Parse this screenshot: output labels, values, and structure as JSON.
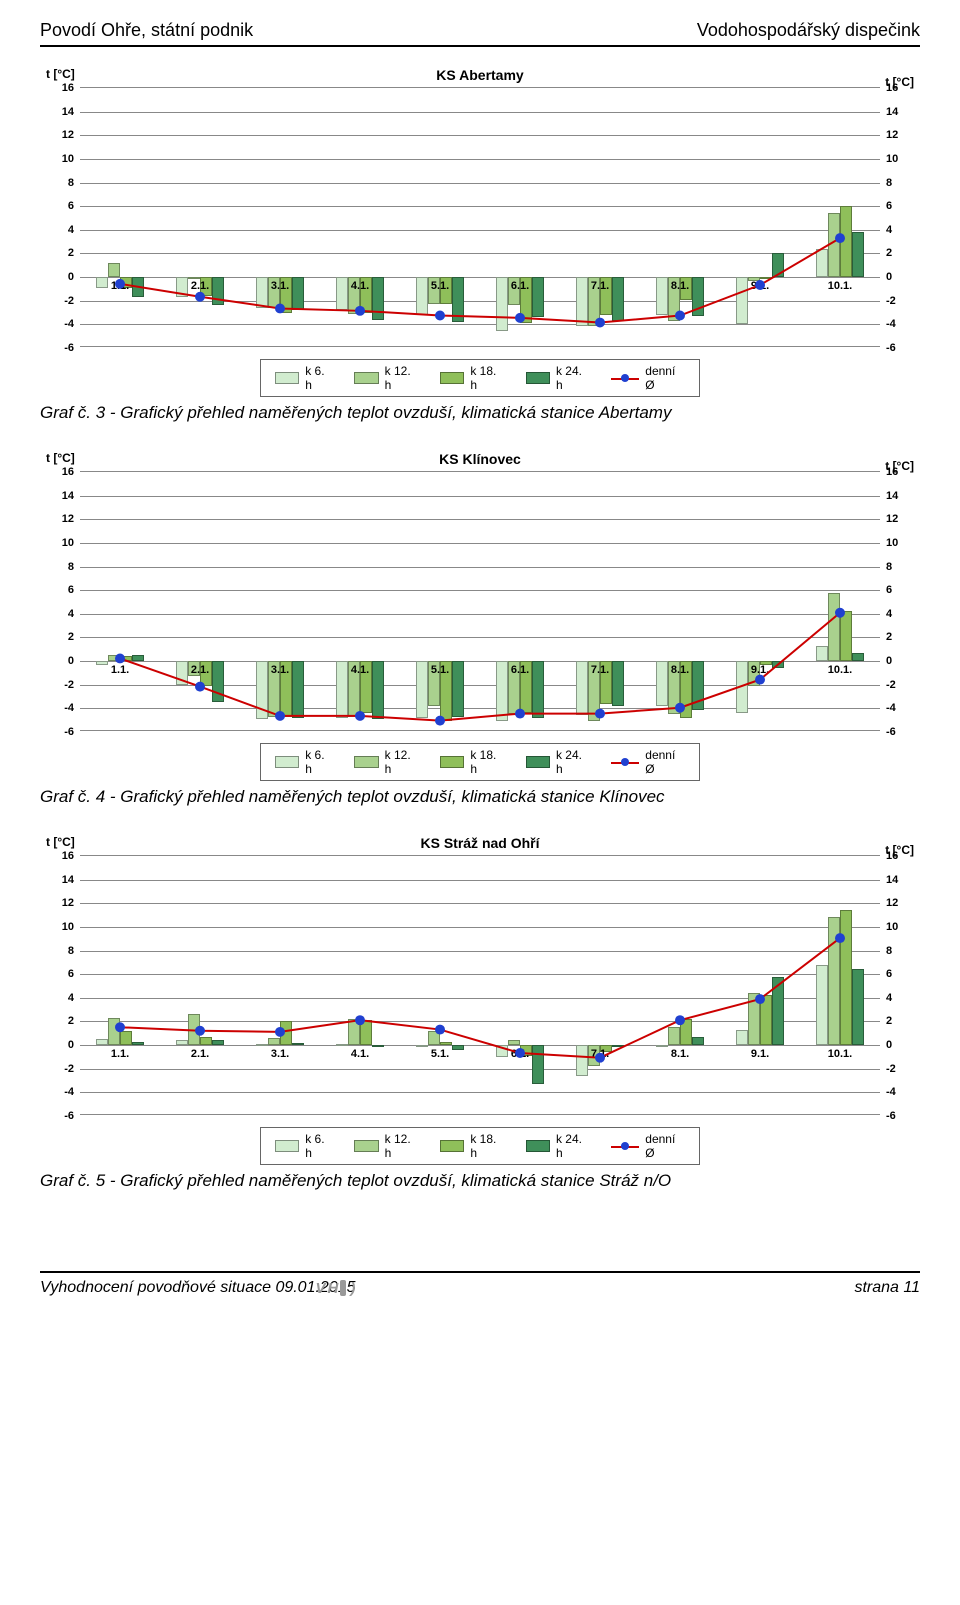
{
  "header": {
    "left": "Povodí Ohře, státní podnik",
    "right": "Vodohospodářský dispečink"
  },
  "footer": {
    "left": "Vyhodnocení povodňové situace 09.01.2015",
    "right": "strana 11"
  },
  "legend": {
    "items": [
      {
        "label": "k 6. h",
        "color": "#d1eccf"
      },
      {
        "label": "k 12. h",
        "color": "#a9d18e"
      },
      {
        "label": "k 18. h",
        "color": "#8fbf5a"
      },
      {
        "label": "k 24. h",
        "color": "#3f8f5a"
      },
      {
        "label": "denní Ø",
        "type": "line",
        "line_color": "#cc0000",
        "marker_color": "#2040d0"
      }
    ]
  },
  "chart_style": {
    "ylim": [
      -6,
      16
    ],
    "ytick_step": 2,
    "grid_color": "#888888",
    "background": "#ffffff",
    "bar_group_width": 0.6,
    "bar_colors": [
      "#d1eccf",
      "#a9d18e",
      "#8fbf5a",
      "#3f8f5a"
    ],
    "line_color": "#cc0000",
    "line_width": 2,
    "marker_color": "#2040d0",
    "marker_radius": 5,
    "title_fontsize": 14,
    "tick_fontsize": 11,
    "axis_label": "t [°C]"
  },
  "charts": [
    {
      "name": "abertamy",
      "title": "KS Abertamy",
      "caption": "Graf č. 3 - Grafický přehled naměřených teplot ovzduší, klimatická stanice Abertamy",
      "categories": [
        "1.1.",
        "2.1.",
        "3.1.",
        "4.1.",
        "5.1.",
        "6.1.",
        "7.1.",
        "8.1.",
        "9.1.",
        "10.1."
      ],
      "series": [
        [
          -0.9,
          -1.7,
          -2.6,
          -2.8,
          -3.2,
          -4.6,
          -4.1,
          -3.2,
          -4.0,
          2.4
        ],
        [
          1.2,
          0.0,
          -2.6,
          -3.1,
          -2.3,
          -2.4,
          -4.1,
          -3.7,
          -0.3,
          5.4
        ],
        [
          -0.9,
          -1.6,
          -3.0,
          -3.0,
          -2.3,
          -3.9,
          -3.2,
          -1.9,
          0.0,
          6.0
        ],
        [
          -1.7,
          -2.4,
          -2.8,
          -3.6,
          -3.8,
          -3.4,
          -3.7,
          -3.3,
          2.0,
          3.8
        ]
      ],
      "line": [
        -0.7,
        -1.8,
        -2.8,
        -3.0,
        -3.4,
        -3.6,
        -4.0,
        -3.4,
        -0.8,
        3.2
      ]
    },
    {
      "name": "klinovec",
      "title": "KS Klínovec",
      "caption": "Graf č. 4 - Grafický přehled naměřených teplot ovzduší, klimatická stanice Klínovec",
      "categories": [
        "1.1.",
        "2.1.",
        "3.1.",
        "4.1.",
        "5.1.",
        "6.1.",
        "7.1.",
        "8.1.",
        "9.1.",
        "10.1."
      ],
      "series": [
        [
          -0.3,
          -2.0,
          -4.9,
          -4.8,
          -4.8,
          -5.1,
          -4.6,
          -3.8,
          -4.4,
          1.3
        ],
        [
          0.5,
          -1.3,
          -4.7,
          -4.7,
          -3.8,
          -4.5,
          -5.1,
          -4.5,
          -2.1,
          5.8
        ],
        [
          0.4,
          -2.1,
          -4.7,
          -4.4,
          -5.1,
          -4.4,
          -3.6,
          -4.8,
          -0.3,
          4.2
        ],
        [
          0.5,
          -3.5,
          -4.8,
          -4.9,
          -4.7,
          -4.8,
          -3.8,
          -4.1,
          -0.6,
          0.7
        ]
      ],
      "line": [
        0.1,
        -2.3,
        -4.8,
        -4.8,
        -5.2,
        -4.6,
        -4.6,
        -4.1,
        -1.7,
        4.0
      ]
    },
    {
      "name": "straz",
      "title": "KS Stráž nad Ohří",
      "caption": "Graf č. 5 - Grafický přehled naměřených teplot ovzduší, klimatická stanice Stráž n/O",
      "categories": [
        "1.1.",
        "2.1.",
        "3.1.",
        "4.1.",
        "5.1.",
        "6.1.",
        "7.1.",
        "8.1.",
        "9.1.",
        "10.1."
      ],
      "series": [
        [
          0.5,
          0.4,
          0.1,
          0.1,
          -0.2,
          -1.0,
          -2.6,
          -0.2,
          1.3,
          6.8
        ],
        [
          2.3,
          2.6,
          0.6,
          2.2,
          1.2,
          0.4,
          -1.8,
          1.5,
          4.4,
          10.8
        ],
        [
          1.2,
          0.7,
          2.0,
          2.1,
          0.3,
          -0.9,
          -0.6,
          2.2,
          4.2,
          11.4
        ],
        [
          0.3,
          0.4,
          0.2,
          0.0,
          -0.4,
          -3.3,
          -0.2,
          0.7,
          5.8,
          6.4
        ]
      ],
      "line": [
        1.4,
        1.1,
        1.0,
        2.0,
        1.2,
        -0.8,
        -1.2,
        2.0,
        3.8,
        9.0
      ]
    }
  ]
}
